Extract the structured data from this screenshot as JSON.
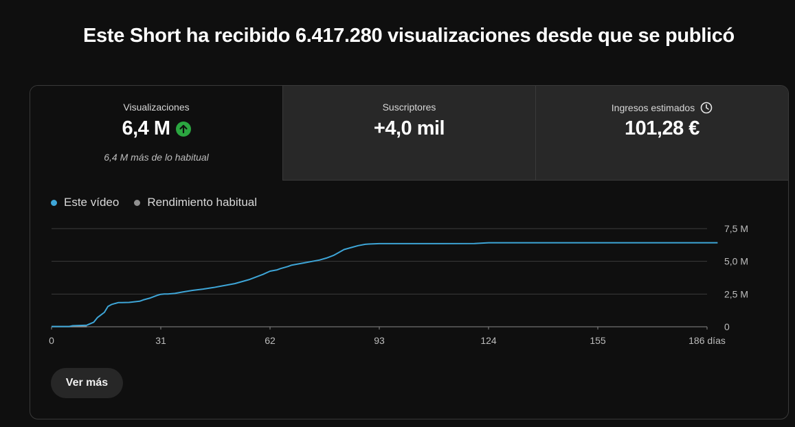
{
  "headline": "Este Short ha recibido 6.417.280 visualizaciones desde que se publicó",
  "tabs": [
    {
      "label": "Visualizaciones",
      "value": "6,4 M",
      "subtext": "6,4 M más de lo habitual",
      "icon": "arrow-up-icon",
      "icon_color": "#2ba640",
      "selected": true
    },
    {
      "label": "Suscriptores",
      "value": "+4,0 mil",
      "selected": false
    },
    {
      "label": "Ingresos estimados",
      "value": "101,28 €",
      "icon": "clock-icon",
      "selected": false
    }
  ],
  "legend": [
    {
      "name": "Este vídeo",
      "color": "#3ea6d8"
    },
    {
      "name": "Rendimiento habitual",
      "color": "#909090"
    }
  ],
  "chart_data": {
    "type": "line",
    "x_ticks": [
      "0",
      "31",
      "62",
      "93",
      "124",
      "155",
      "186 días"
    ],
    "y_ticks": [
      "0",
      "2,5 M",
      "5,0 M",
      "7,5 M"
    ],
    "xlim": [
      0,
      186
    ],
    "ylim": [
      0,
      7.5
    ],
    "y_unit": "M",
    "grid": true,
    "legend_position": "top-left",
    "series": [
      {
        "name": "Este vídeo",
        "color": "#3ea6d8",
        "x": [
          0,
          5,
          6,
          10,
          12,
          13,
          14,
          15,
          16,
          17,
          18,
          19,
          20,
          22,
          25,
          26,
          28,
          30,
          31,
          32,
          33,
          35,
          37,
          40,
          43,
          46,
          48,
          50,
          52,
          56,
          60,
          62,
          64,
          65,
          67,
          68,
          70,
          72,
          74,
          76,
          78,
          80,
          81,
          82,
          83,
          85,
          87,
          89,
          90,
          93,
          100,
          110,
          120,
          124,
          127,
          140,
          160,
          180,
          189
        ],
        "y": [
          0.02,
          0.02,
          0.08,
          0.12,
          0.35,
          0.7,
          0.9,
          1.1,
          1.55,
          1.7,
          1.78,
          1.85,
          1.85,
          1.86,
          1.95,
          2.05,
          2.2,
          2.4,
          2.48,
          2.5,
          2.5,
          2.55,
          2.65,
          2.78,
          2.88,
          3.0,
          3.1,
          3.2,
          3.3,
          3.6,
          4.0,
          4.25,
          4.35,
          4.45,
          4.6,
          4.7,
          4.8,
          4.9,
          5.0,
          5.1,
          5.25,
          5.45,
          5.6,
          5.75,
          5.9,
          6.05,
          6.2,
          6.3,
          6.32,
          6.35,
          6.35,
          6.35,
          6.36,
          6.42,
          6.42,
          6.42,
          6.42,
          6.42,
          6.42
        ]
      },
      {
        "name": "Rendimiento habitual",
        "color": "#909090",
        "x": [
          0,
          5,
          10
        ],
        "y": [
          0.01,
          0.01,
          0.01
        ]
      }
    ]
  },
  "ver_mas_label": "Ver más"
}
